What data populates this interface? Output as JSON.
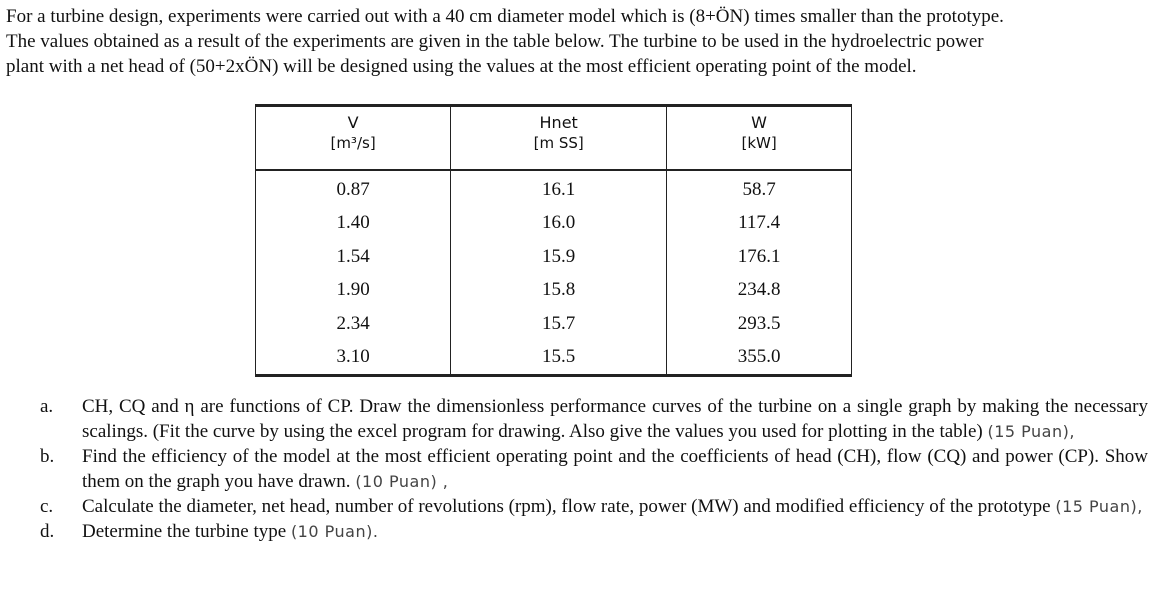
{
  "intro": {
    "line1": "For a turbine design, experiments were carried out with a 40 cm diameter model which is (8+ÖN) times smaller than the prototype.",
    "line2": "The values obtained as a result of the experiments are given in the table below. The turbine to be used in the hydroelectric power",
    "line3": "plant with a net head of (50+2xÖN) will be designed using the values at the most efficient operating point of the model."
  },
  "table": {
    "headers": [
      {
        "symbol": "V",
        "unit": "[m³/s]"
      },
      {
        "symbol": "Hnet",
        "unit": "[m SS]"
      },
      {
        "symbol": "W",
        "unit": "[kW]"
      }
    ],
    "rows": [
      [
        "0.87",
        "16.1",
        "58.7"
      ],
      [
        "1.40",
        "16.0",
        "117.4"
      ],
      [
        "1.54",
        "15.9",
        "176.1"
      ],
      [
        "1.90",
        "15.8",
        "234.8"
      ],
      [
        "2.34",
        "15.7",
        "293.5"
      ],
      [
        "3.10",
        "15.5",
        "355.0"
      ]
    ]
  },
  "questions": [
    {
      "letter": "a.",
      "text": "CH, CQ and η are functions of CP. Draw the dimensionless performance curves of the turbine on a single graph by making the necessary scalings. (Fit the curve by using the excel program for drawing. Also give the values you used for plotting in the table)",
      "points": "(15 Puan),"
    },
    {
      "letter": "b.",
      "text": "Find the efficiency of the model at the most efficient operating point and the coefficients of head (CH), flow (CQ) and power (CP). Show them on the graph you have drawn.",
      "points": "(10 Puan) ,"
    },
    {
      "letter": "c.",
      "text": "Calculate the diameter, net head, number of revolutions (rpm), flow rate, power (MW) and modified efficiency of the prototype",
      "points": "(15 Puan),"
    },
    {
      "letter": "d.",
      "text": "Determine the turbine type",
      "points": "(10 Puan)."
    }
  ]
}
